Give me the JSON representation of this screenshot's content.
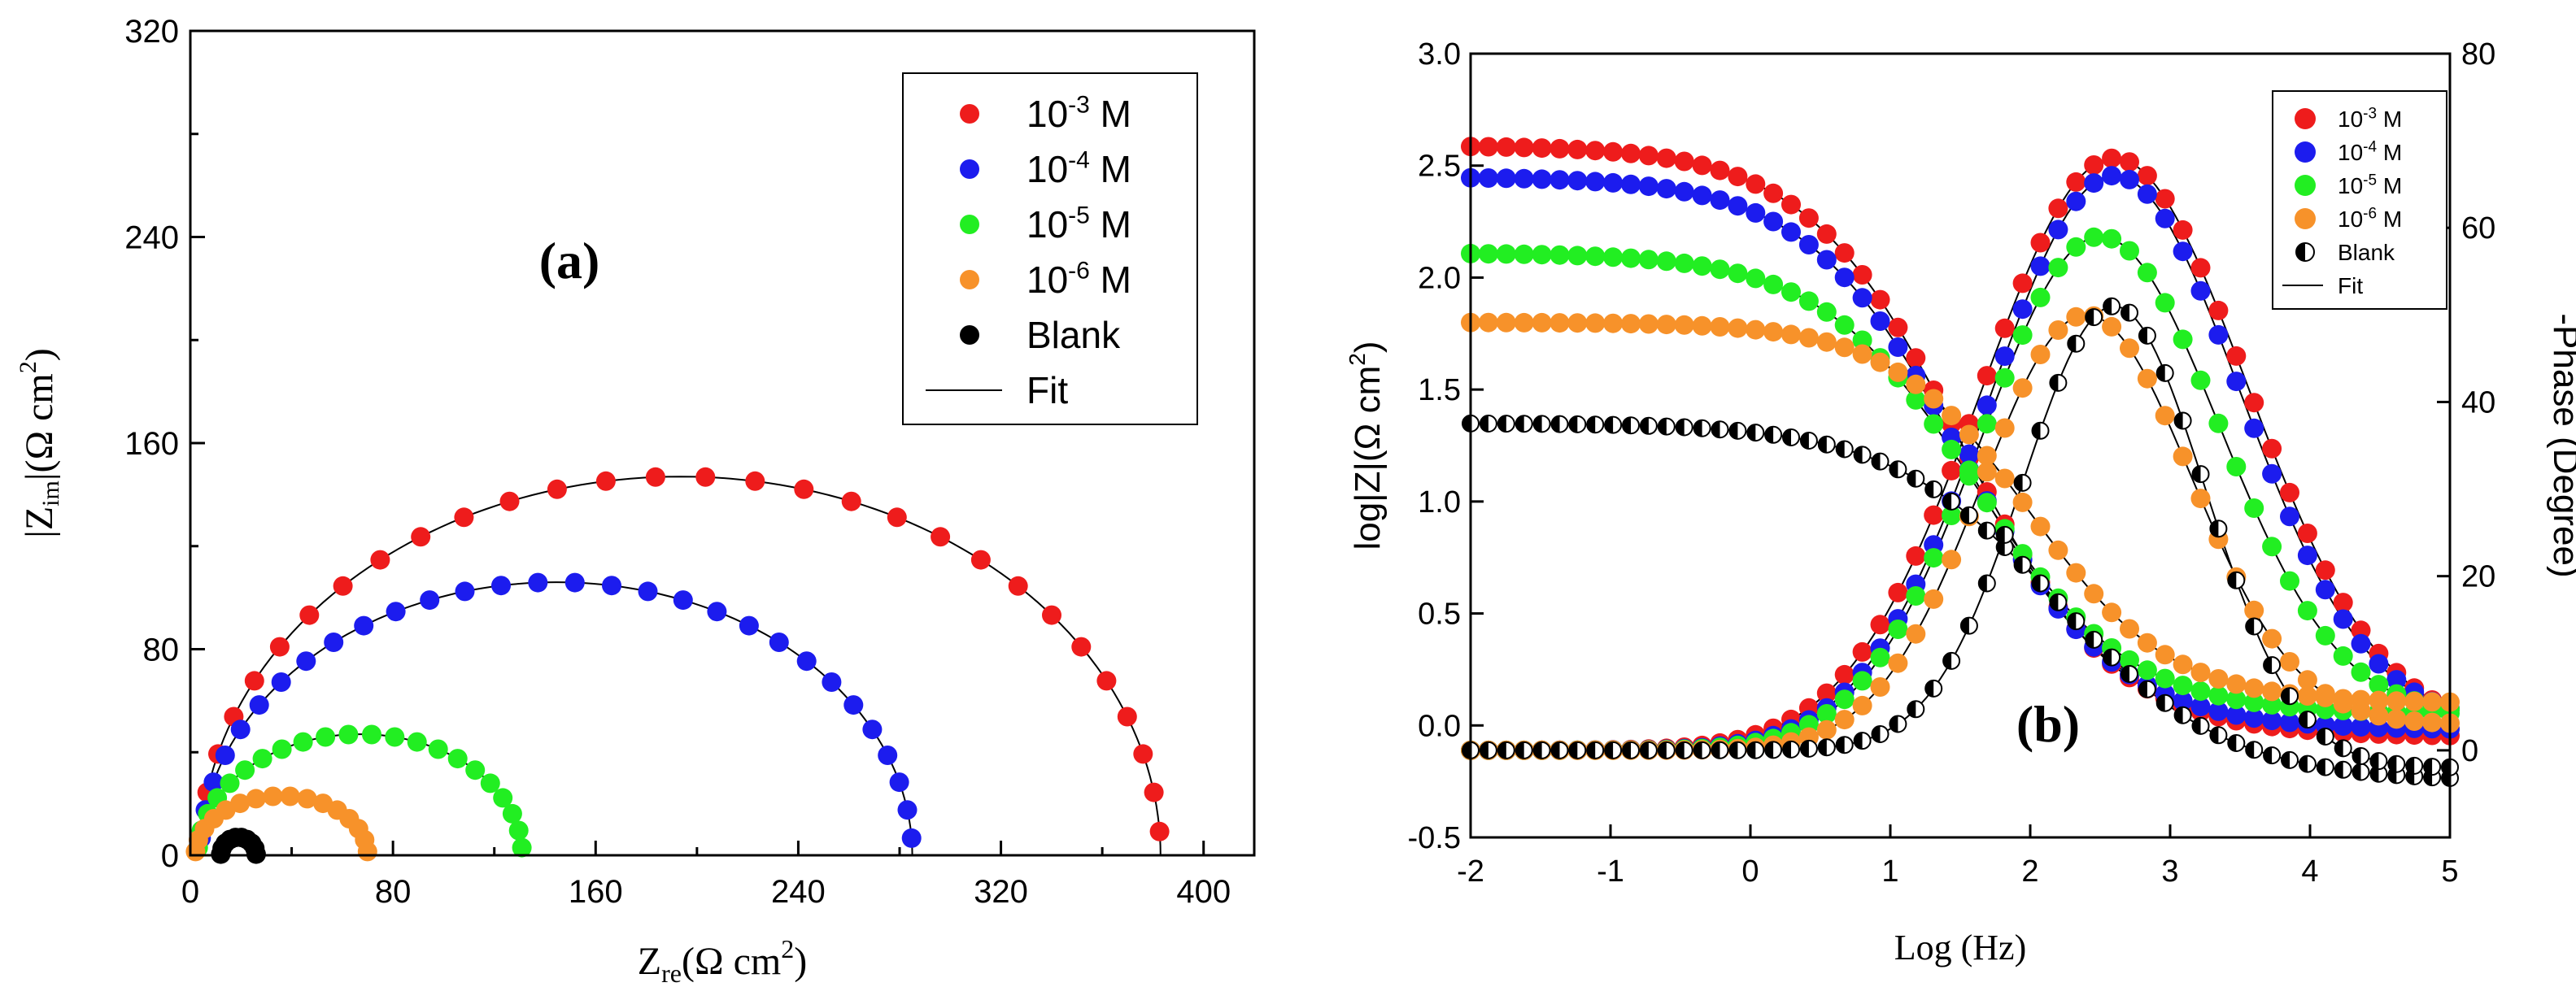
{
  "colors": {
    "red": "#ee1c1c",
    "blue": "#1c1cee",
    "green": "#22ee22",
    "orange": "#f7922a",
    "black": "#000000"
  },
  "chart_data": [
    {
      "type": "scatter",
      "subtype": "nyquist",
      "panel_label": "(a)",
      "xlabel": "Zre(Ω cm2)",
      "xlabel_parts": {
        "base": "Z",
        "sub": "re",
        "rest": "(Ω cm",
        "sup": "2",
        "close": ")"
      },
      "ylabel": "|Zim|(Ω cm2)",
      "ylabel_parts": {
        "open": "|Z",
        "sub": "im",
        "rest": "|(Ω cm",
        "sup": "2",
        "close": ")"
      },
      "xlim": [
        0,
        420
      ],
      "ylim": [
        0,
        320
      ],
      "xticks": [
        0,
        80,
        160,
        240,
        320,
        400
      ],
      "yticks": [
        0,
        80,
        160,
        240,
        320
      ],
      "legend_position": "top-right",
      "legend": [
        {
          "label": "10-3 M",
          "base": "10",
          "sup": "-3",
          "unit": " M",
          "color_key": "red",
          "marker": "filled"
        },
        {
          "label": "10-4 M",
          "base": "10",
          "sup": "-4",
          "unit": " M",
          "color_key": "blue",
          "marker": "filled"
        },
        {
          "label": "10-5 M",
          "base": "10",
          "sup": "-5",
          "unit": " M",
          "color_key": "green",
          "marker": "filled"
        },
        {
          "label": "10-6 M",
          "base": "10",
          "sup": "-6",
          "unit": " M",
          "color_key": "orange",
          "marker": "filled"
        },
        {
          "label": "Blank",
          "base": "Blank",
          "sup": "",
          "unit": "",
          "color_key": "black",
          "marker": "filled"
        },
        {
          "label": "Fit",
          "base": "Fit",
          "sup": "",
          "unit": "",
          "color_key": "black",
          "marker": "line"
        }
      ],
      "series": [
        {
          "name": "10-3 M",
          "color_key": "red",
          "z_start": 4,
          "z_end": 383,
          "height": 147,
          "n": 30
        },
        {
          "name": "10-4 M",
          "color_key": "blue",
          "z_start": 4,
          "z_end": 285,
          "height": 106,
          "n": 30
        },
        {
          "name": "10-5 M",
          "color_key": "green",
          "z_start": 3,
          "z_end": 131,
          "height": 47,
          "n": 22
        },
        {
          "name": "10-6 M",
          "color_key": "orange",
          "z_start": 2,
          "z_end": 70,
          "height": 23,
          "n": 16
        },
        {
          "name": "Blank",
          "color_key": "black",
          "z_start": 12,
          "z_end": 26,
          "height": 7,
          "n": 10
        }
      ]
    },
    {
      "type": "scatter",
      "subtype": "bode",
      "panel_label": "(b)",
      "xlabel": "Log (Hz)",
      "ylabel": "log|Z|(Ω cm2)",
      "ylabel_parts": {
        "base": "log|Z|(Ω cm",
        "sup": "2",
        "close": ")"
      },
      "y2label": "-Phase (Degree)",
      "xlim": [
        -2,
        5
      ],
      "ylim": [
        -0.5,
        3.0
      ],
      "y2lim": [
        -10,
        80
      ],
      "xticks": [
        -2,
        -1,
        0,
        1,
        2,
        3,
        4,
        5
      ],
      "yticks": [
        -0.5,
        0.0,
        0.5,
        1.0,
        1.5,
        2.0,
        2.5,
        3.0
      ],
      "y2ticks": [
        0,
        20,
        40,
        60,
        80
      ],
      "legend_position": "top-right",
      "legend": [
        {
          "label": "10-3 M",
          "base": "10",
          "sup": "-3",
          "unit": " M",
          "color_key": "red",
          "marker": "filled"
        },
        {
          "label": "10-4 M",
          "base": "10",
          "sup": "-4",
          "unit": " M",
          "color_key": "blue",
          "marker": "filled"
        },
        {
          "label": "10-5 M",
          "base": "10",
          "sup": "-5",
          "unit": " M",
          "color_key": "green",
          "marker": "filled"
        },
        {
          "label": "10-6 M",
          "base": "10",
          "sup": "-6",
          "unit": " M",
          "color_key": "orange",
          "marker": "filled"
        },
        {
          "label": "Blank",
          "base": "Blank",
          "sup": "",
          "unit": "",
          "color_key": "black",
          "marker": "half"
        },
        {
          "label": "Fit",
          "base": "Fit",
          "sup": "",
          "unit": "",
          "color_key": "black",
          "marker": "line"
        }
      ],
      "series": [
        {
          "name": "10-3 M",
          "color_key": "red",
          "logz_low": 2.59,
          "logz_high": -0.05,
          "logz_fc": 1.5,
          "logz_width": 0.55,
          "phase_peak": 68,
          "phase_fc": 2.6,
          "phase_width": 0.95,
          "phase_end": 2,
          "n": 56
        },
        {
          "name": "10-4 M",
          "color_key": "blue",
          "logz_low": 2.45,
          "logz_high": -0.02,
          "logz_fc": 1.5,
          "logz_width": 0.55,
          "phase_peak": 66,
          "phase_fc": 2.6,
          "phase_width": 0.9,
          "phase_end": 3,
          "n": 56
        },
        {
          "name": "10-5 M",
          "color_key": "green",
          "logz_low": 2.11,
          "logz_high": 0.05,
          "logz_fc": 1.6,
          "logz_width": 0.55,
          "phase_peak": 59,
          "phase_fc": 2.5,
          "phase_width": 0.85,
          "phase_end": 4,
          "n": 56
        },
        {
          "name": "10-6 M",
          "color_key": "orange",
          "logz_low": 1.8,
          "logz_high": 0.1,
          "logz_fc": 2.0,
          "logz_width": 0.5,
          "phase_peak": 50,
          "phase_fc": 2.4,
          "phase_width": 0.75,
          "phase_end": 3,
          "n": 56
        },
        {
          "name": "Blank",
          "color_key": "black",
          "logz_low": 1.35,
          "logz_high": -0.25,
          "logz_fc": 2.2,
          "logz_width": 0.6,
          "phase_peak": 51,
          "phase_fc": 2.6,
          "phase_width": 0.65,
          "phase_end": -2,
          "n": 56
        }
      ]
    }
  ]
}
